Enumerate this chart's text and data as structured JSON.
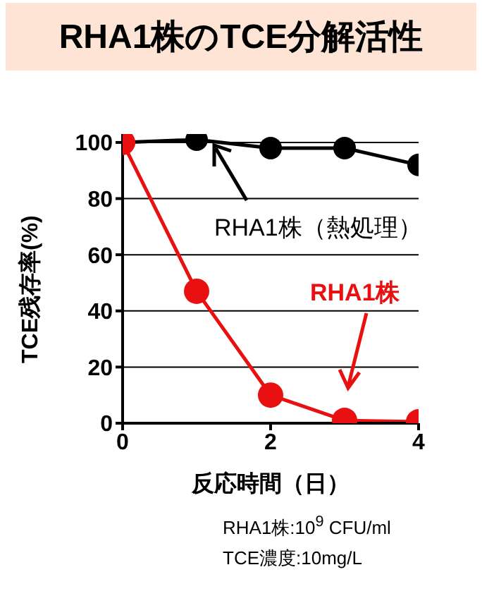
{
  "chart_data": {
    "type": "line",
    "title": "RHA1株のTCE分解活性",
    "xlabel": "反応時間（日）",
    "ylabel": "TCE残存率(%)",
    "x": [
      0,
      1,
      2,
      3,
      4
    ],
    "series": [
      {
        "name": "RHA1株（熱処理）",
        "color": "#000000",
        "values": [
          100,
          101,
          98,
          98,
          92
        ]
      },
      {
        "name": "RHA1株",
        "color": "#e81010",
        "values": [
          100,
          47,
          10,
          1,
          0.5
        ]
      }
    ],
    "xlim": [
      0,
      4
    ],
    "xticks": [
      0,
      2,
      4
    ],
    "ylim": [
      0,
      103
    ],
    "yticks": [
      0,
      20,
      40,
      60,
      80,
      100
    ],
    "grid": "y",
    "marker": "circle",
    "line_style": "solid",
    "annotations": [
      "RHA1株:10$^{9}$ CFU/ml",
      "TCE濃度:10mg/L"
    ]
  }
}
